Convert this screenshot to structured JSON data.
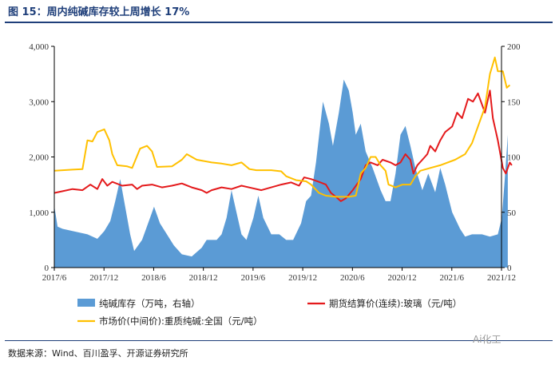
{
  "header": {
    "title": "图 15：周内纯碱库存较上周增长 17%"
  },
  "footer": {
    "source": "数据来源：Wind、百川盈孚、开源证券研究所",
    "watermark": "Ai化工"
  },
  "colors": {
    "inventory": "#5b9bd5",
    "glass": "#e41a1c",
    "soda": "#ffc000",
    "title": "#1f3f7a"
  },
  "chart_data": {
    "type": "line+area",
    "title": "周内纯碱库存较上周增长 17%",
    "x_ticks": [
      "2017/6",
      "2017/12",
      "2018/6",
      "2018/12",
      "2019/6",
      "2019/12",
      "2020/6",
      "2020/12",
      "2021/6",
      "2021/12"
    ],
    "x_range": [
      "2017/6",
      "2021/12"
    ],
    "left_axis": {
      "ylim": [
        0,
        4000
      ],
      "ticks": [
        "0",
        "1,000",
        "2,000",
        "3,000",
        "4,000"
      ]
    },
    "right_axis": {
      "ylim": [
        0,
        200
      ],
      "ticks": [
        "0",
        "50",
        "100",
        "150",
        "200"
      ]
    },
    "series": [
      {
        "name": "纯碱库存（万吨，右轴）",
        "type": "area",
        "axis": "right",
        "points": [
          [
            2017.42,
            54
          ],
          [
            2017.45,
            37
          ],
          [
            2017.5,
            35
          ],
          [
            2017.6,
            33
          ],
          [
            2017.75,
            30
          ],
          [
            2017.85,
            26
          ],
          [
            2017.92,
            33
          ],
          [
            2017.98,
            42
          ],
          [
            2018.03,
            60
          ],
          [
            2018.08,
            80
          ],
          [
            2018.12,
            60
          ],
          [
            2018.18,
            30
          ],
          [
            2018.22,
            15
          ],
          [
            2018.3,
            25
          ],
          [
            2018.38,
            45
          ],
          [
            2018.42,
            55
          ],
          [
            2018.48,
            40
          ],
          [
            2018.55,
            30
          ],
          [
            2018.62,
            20
          ],
          [
            2018.7,
            12
          ],
          [
            2018.8,
            10
          ],
          [
            2018.9,
            18
          ],
          [
            2018.95,
            25
          ],
          [
            2019.05,
            25
          ],
          [
            2019.1,
            30
          ],
          [
            2019.15,
            45
          ],
          [
            2019.2,
            70
          ],
          [
            2019.25,
            50
          ],
          [
            2019.3,
            30
          ],
          [
            2019.35,
            25
          ],
          [
            2019.42,
            45
          ],
          [
            2019.47,
            65
          ],
          [
            2019.52,
            45
          ],
          [
            2019.6,
            30
          ],
          [
            2019.68,
            30
          ],
          [
            2019.75,
            25
          ],
          [
            2019.82,
            25
          ],
          [
            2019.9,
            40
          ],
          [
            2019.95,
            60
          ],
          [
            2020.0,
            65
          ],
          [
            2020.05,
            95
          ],
          [
            2020.12,
            150
          ],
          [
            2020.18,
            130
          ],
          [
            2020.22,
            110
          ],
          [
            2020.28,
            140
          ],
          [
            2020.33,
            170
          ],
          [
            2020.38,
            160
          ],
          [
            2020.42,
            140
          ],
          [
            2020.45,
            120
          ],
          [
            2020.5,
            130
          ],
          [
            2020.55,
            105
          ],
          [
            2020.62,
            90
          ],
          [
            2020.7,
            70
          ],
          [
            2020.75,
            60
          ],
          [
            2020.8,
            60
          ],
          [
            2020.85,
            85
          ],
          [
            2020.9,
            120
          ],
          [
            2020.95,
            128
          ],
          [
            2021.0,
            110
          ],
          [
            2021.05,
            90
          ],
          [
            2021.12,
            70
          ],
          [
            2021.18,
            85
          ],
          [
            2021.25,
            68
          ],
          [
            2021.3,
            90
          ],
          [
            2021.35,
            75
          ],
          [
            2021.42,
            50
          ],
          [
            2021.5,
            35
          ],
          [
            2021.55,
            28
          ],
          [
            2021.62,
            30
          ],
          [
            2021.72,
            30
          ],
          [
            2021.8,
            28
          ],
          [
            2021.88,
            30
          ],
          [
            2021.92,
            45
          ],
          [
            2021.95,
            80
          ],
          [
            2021.98,
            120
          ]
        ]
      },
      {
        "name": "期货结算价(连续):玻璃（元/吨）",
        "type": "line",
        "axis": "left",
        "points": [
          [
            2017.42,
            1350
          ],
          [
            2017.5,
            1380
          ],
          [
            2017.6,
            1420
          ],
          [
            2017.7,
            1400
          ],
          [
            2017.78,
            1500
          ],
          [
            2017.85,
            1420
          ],
          [
            2017.9,
            1600
          ],
          [
            2017.95,
            1480
          ],
          [
            2018.0,
            1550
          ],
          [
            2018.1,
            1480
          ],
          [
            2018.2,
            1500
          ],
          [
            2018.25,
            1420
          ],
          [
            2018.3,
            1480
          ],
          [
            2018.4,
            1500
          ],
          [
            2018.5,
            1450
          ],
          [
            2018.6,
            1480
          ],
          [
            2018.7,
            1520
          ],
          [
            2018.8,
            1450
          ],
          [
            2018.9,
            1400
          ],
          [
            2018.95,
            1350
          ],
          [
            2019.0,
            1400
          ],
          [
            2019.1,
            1450
          ],
          [
            2019.2,
            1420
          ],
          [
            2019.3,
            1480
          ],
          [
            2019.4,
            1440
          ],
          [
            2019.5,
            1400
          ],
          [
            2019.6,
            1450
          ],
          [
            2019.7,
            1500
          ],
          [
            2019.8,
            1540
          ],
          [
            2019.88,
            1480
          ],
          [
            2019.93,
            1630
          ],
          [
            2020.0,
            1600
          ],
          [
            2020.08,
            1550
          ],
          [
            2020.15,
            1500
          ],
          [
            2020.2,
            1350
          ],
          [
            2020.25,
            1280
          ],
          [
            2020.3,
            1200
          ],
          [
            2020.35,
            1250
          ],
          [
            2020.42,
            1400
          ],
          [
            2020.5,
            1600
          ],
          [
            2020.55,
            1850
          ],
          [
            2020.6,
            1900
          ],
          [
            2020.67,
            1850
          ],
          [
            2020.72,
            1950
          ],
          [
            2020.8,
            1900
          ],
          [
            2020.85,
            1850
          ],
          [
            2020.9,
            1900
          ],
          [
            2020.95,
            2050
          ],
          [
            2021.0,
            1950
          ],
          [
            2021.03,
            1700
          ],
          [
            2021.07,
            1850
          ],
          [
            2021.12,
            1950
          ],
          [
            2021.17,
            2050
          ],
          [
            2021.2,
            2200
          ],
          [
            2021.25,
            2100
          ],
          [
            2021.3,
            2300
          ],
          [
            2021.35,
            2450
          ],
          [
            2021.42,
            2550
          ],
          [
            2021.47,
            2800
          ],
          [
            2021.52,
            2700
          ],
          [
            2021.58,
            3050
          ],
          [
            2021.63,
            3000
          ],
          [
            2021.68,
            3150
          ],
          [
            2021.72,
            2950
          ],
          [
            2021.75,
            2800
          ],
          [
            2021.8,
            3200
          ],
          [
            2021.83,
            2700
          ],
          [
            2021.88,
            2300
          ],
          [
            2021.93,
            1800
          ],
          [
            2021.96,
            1700
          ],
          [
            2022.0,
            1900
          ],
          [
            2022.02,
            1850
          ]
        ]
      },
      {
        "name": "市场价(中间价):重质纯碱:全国（元/吨）",
        "type": "line",
        "axis": "left",
        "points": [
          [
            2017.42,
            1750
          ],
          [
            2017.6,
            1770
          ],
          [
            2017.7,
            1780
          ],
          [
            2017.75,
            2300
          ],
          [
            2017.8,
            2280
          ],
          [
            2017.85,
            2450
          ],
          [
            2017.92,
            2500
          ],
          [
            2017.97,
            2300
          ],
          [
            2018.0,
            2050
          ],
          [
            2018.05,
            1850
          ],
          [
            2018.15,
            1830
          ],
          [
            2018.2,
            1800
          ],
          [
            2018.28,
            2150
          ],
          [
            2018.35,
            2200
          ],
          [
            2018.4,
            2100
          ],
          [
            2018.45,
            1820
          ],
          [
            2018.6,
            1830
          ],
          [
            2018.7,
            1950
          ],
          [
            2018.75,
            2050
          ],
          [
            2018.85,
            1950
          ],
          [
            2019.0,
            1900
          ],
          [
            2019.1,
            1880
          ],
          [
            2019.2,
            1850
          ],
          [
            2019.3,
            1900
          ],
          [
            2019.38,
            1780
          ],
          [
            2019.45,
            1760
          ],
          [
            2019.6,
            1760
          ],
          [
            2019.7,
            1740
          ],
          [
            2019.75,
            1650
          ],
          [
            2019.85,
            1580
          ],
          [
            2019.95,
            1560
          ],
          [
            2020.0,
            1500
          ],
          [
            2020.08,
            1350
          ],
          [
            2020.15,
            1300
          ],
          [
            2020.25,
            1280
          ],
          [
            2020.38,
            1280
          ],
          [
            2020.45,
            1300
          ],
          [
            2020.5,
            1700
          ],
          [
            2020.55,
            1800
          ],
          [
            2020.6,
            2000
          ],
          [
            2020.65,
            2000
          ],
          [
            2020.7,
            1850
          ],
          [
            2020.75,
            1750
          ],
          [
            2020.78,
            1500
          ],
          [
            2020.85,
            1450
          ],
          [
            2020.92,
            1500
          ],
          [
            2021.0,
            1500
          ],
          [
            2021.05,
            1650
          ],
          [
            2021.1,
            1750
          ],
          [
            2021.2,
            1800
          ],
          [
            2021.3,
            1850
          ],
          [
            2021.45,
            1950
          ],
          [
            2021.55,
            2050
          ],
          [
            2021.62,
            2250
          ],
          [
            2021.7,
            2650
          ],
          [
            2021.75,
            2900
          ],
          [
            2021.8,
            3500
          ],
          [
            2021.85,
            3800
          ],
          [
            2021.88,
            3550
          ],
          [
            2021.93,
            3550
          ],
          [
            2021.97,
            3250
          ],
          [
            2022.0,
            3300
          ]
        ]
      }
    ],
    "legend": {
      "position": "bottom",
      "items": [
        "纯碱库存（万吨，右轴）",
        "期货结算价(连续):玻璃（元/吨）",
        "市场价(中间价):重质纯碱:全国（元/吨）"
      ]
    }
  }
}
